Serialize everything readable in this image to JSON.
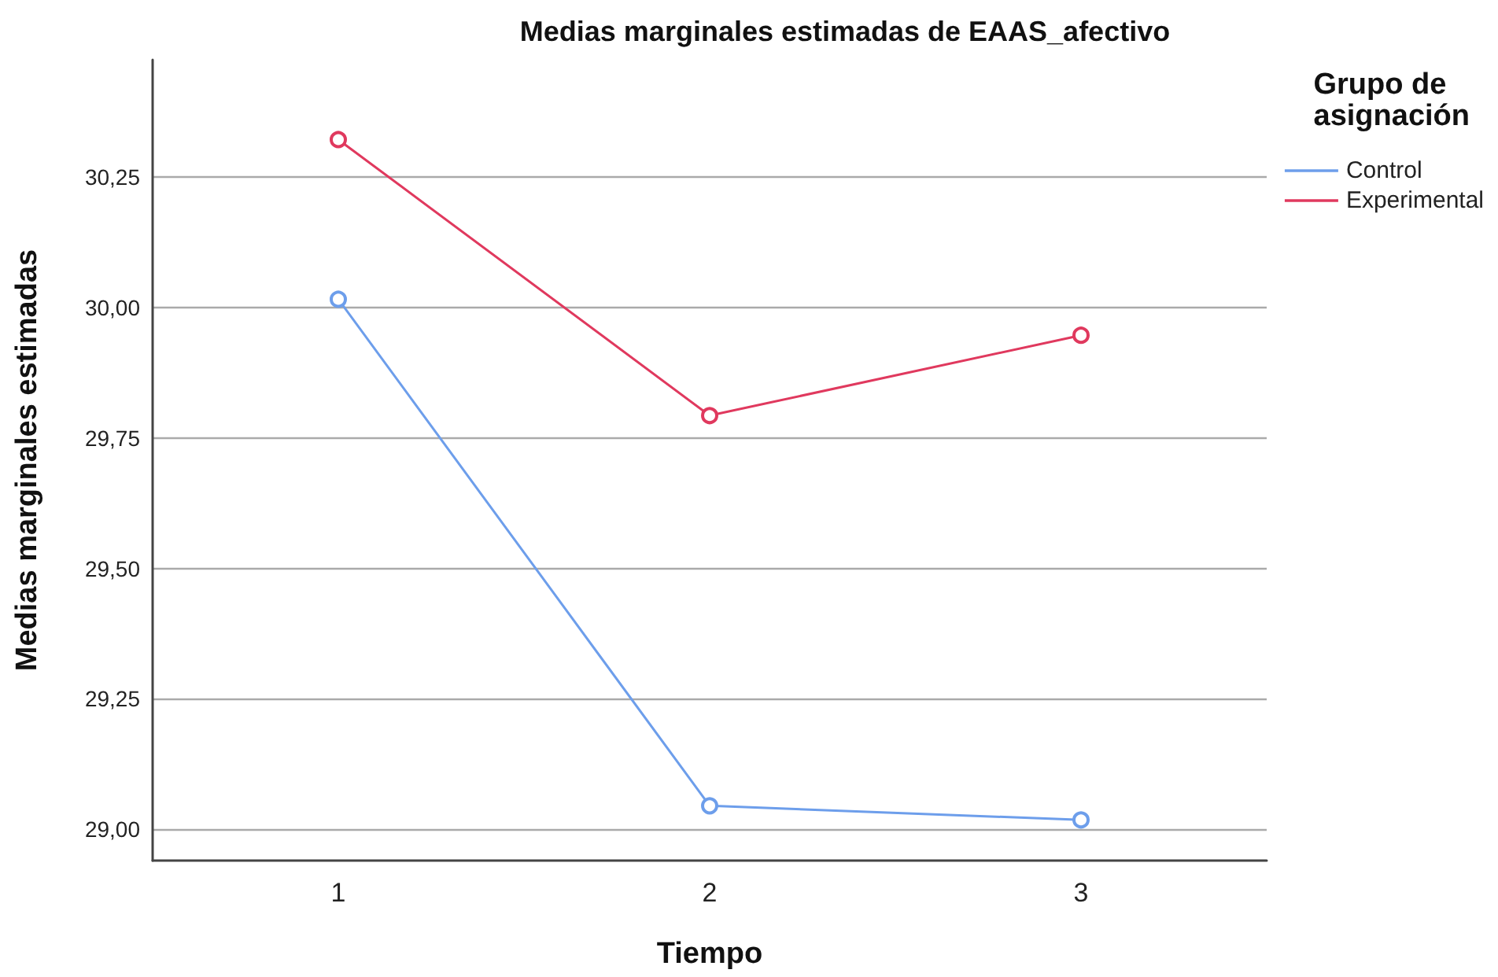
{
  "chart_data": {
    "type": "line",
    "title": "Medias marginales estimadas de EAAS_afectivo",
    "xlabel": "Tiempo",
    "ylabel": "Medias marginales estimadas",
    "legend_title": "Grupo de asignación",
    "categories": [
      "1",
      "2",
      "3"
    ],
    "series": [
      {
        "name": "Control",
        "color": "#6d9eeb",
        "values": [
          30.016,
          29.045,
          29.018
        ]
      },
      {
        "name": "Experimental",
        "color": "#e0395e",
        "values": [
          30.322,
          29.793,
          29.947
        ]
      }
    ],
    "ylim": [
      28.94,
      30.475
    ],
    "yticks": [
      {
        "value": 29,
        "label": "29,00"
      },
      {
        "value": 29.25,
        "label": "29,25"
      },
      {
        "value": 29.5,
        "label": "29,50"
      },
      {
        "value": 29.75,
        "label": "29,75"
      },
      {
        "value": 30,
        "label": "30,00"
      },
      {
        "value": 30.25,
        "label": "30,25"
      }
    ],
    "grid": "y",
    "legend": "top right",
    "marker": "circle",
    "line_style": "solid"
  }
}
